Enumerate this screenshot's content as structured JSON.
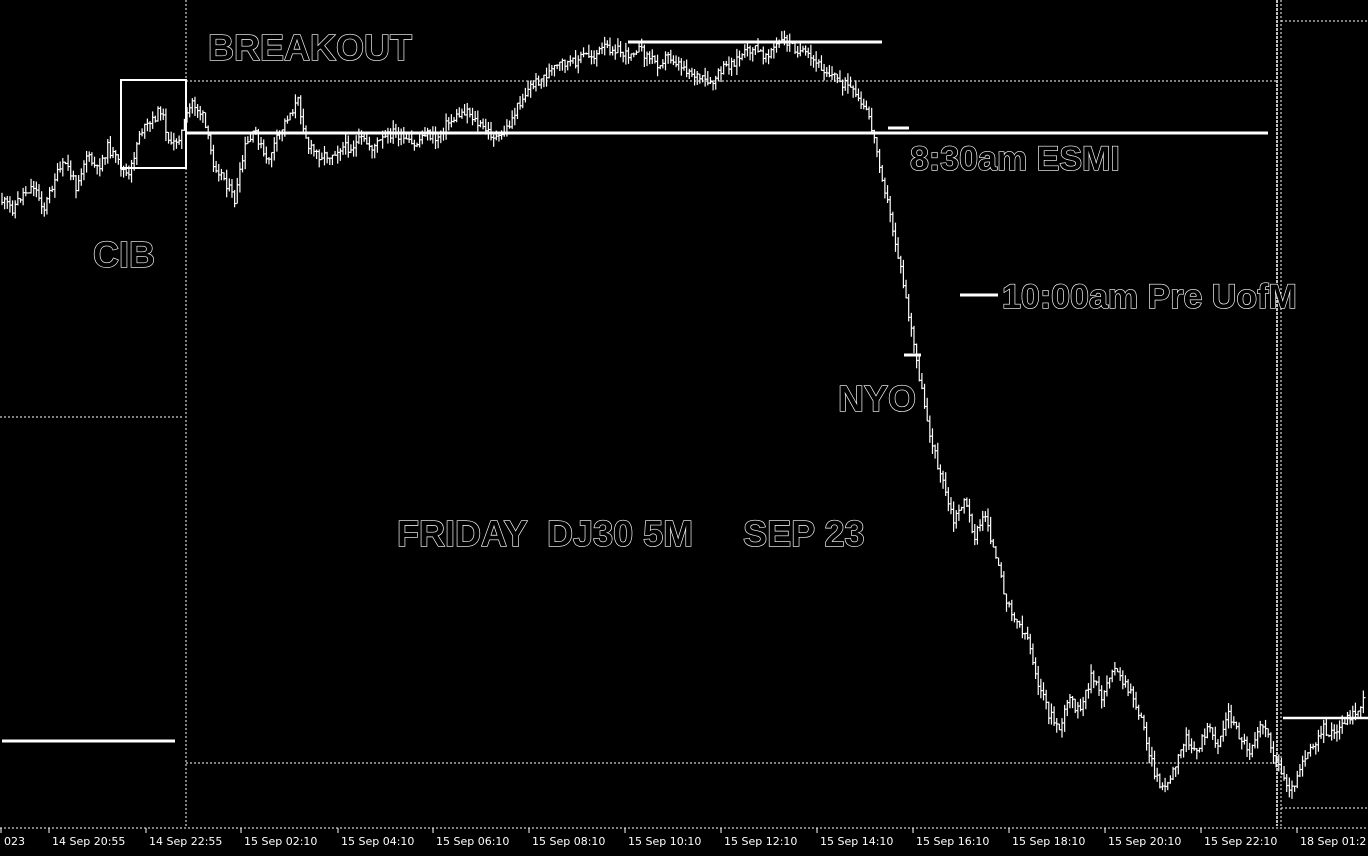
{
  "chart_data": {
    "type": "candlestick",
    "title": "FRIDAY  DJ30 5M     SEP 23",
    "background": "#000000",
    "foreground": "#ffffff",
    "grid": false,
    "x_tick_labels": [
      "023",
      "14 Sep 20:55",
      "14 Sep 22:55",
      "15 Sep 02:10",
      "15 Sep 04:10",
      "15 Sep 06:10",
      "15 Sep 08:10",
      "15 Sep 10:10",
      "15 Sep 12:10",
      "15 Sep 14:10",
      "15 Sep 16:10",
      "15 Sep 18:10",
      "15 Sep 20:10",
      "15 Sep 22:10",
      "18 Sep 01:2"
    ],
    "annotations": {
      "breakout": "BREAKOUT",
      "cib": "CIB",
      "esmi": "8:30am ESMI",
      "uofm": "10:00am Pre UofM",
      "nyo": "NYO"
    },
    "price_path_normalized": [
      0.77,
      0.76,
      0.78,
      0.79,
      0.76,
      0.8,
      0.82,
      0.79,
      0.83,
      0.81,
      0.84,
      0.82,
      0.8,
      0.86,
      0.87,
      0.89,
      0.84,
      0.86,
      0.9,
      0.88,
      0.82,
      0.8,
      0.77,
      0.84,
      0.86,
      0.82,
      0.85,
      0.88,
      0.9,
      0.84,
      0.83,
      0.83,
      0.84,
      0.84,
      0.85,
      0.84,
      0.85,
      0.86,
      0.85,
      0.84,
      0.86,
      0.85,
      0.87,
      0.88,
      0.89,
      0.87,
      0.86,
      0.85,
      0.87,
      0.9,
      0.92,
      0.93,
      0.94,
      0.95,
      0.95,
      0.96,
      0.96,
      0.97,
      0.97,
      0.96,
      0.97,
      0.96,
      0.95,
      0.96,
      0.95,
      0.94,
      0.93,
      0.92,
      0.94,
      0.95,
      0.96,
      0.97,
      0.96,
      0.97,
      0.98,
      0.97,
      0.96,
      0.95,
      0.94,
      0.93,
      0.92,
      0.9,
      0.88,
      0.82,
      0.75,
      0.68,
      0.6,
      0.52,
      0.45,
      0.4,
      0.35,
      0.38,
      0.33,
      0.36,
      0.3,
      0.25,
      0.22,
      0.2,
      0.14,
      0.1,
      0.08,
      0.12,
      0.1,
      0.15,
      0.12,
      0.16,
      0.14,
      0.12,
      0.08,
      0.02,
      0.0,
      0.03,
      0.07,
      0.05,
      0.08,
      0.06,
      0.1,
      0.07,
      0.05,
      0.09,
      0.06,
      0.02,
      0.0,
      0.04,
      0.06,
      0.08,
      0.07,
      0.09,
      0.1,
      0.12
    ]
  }
}
